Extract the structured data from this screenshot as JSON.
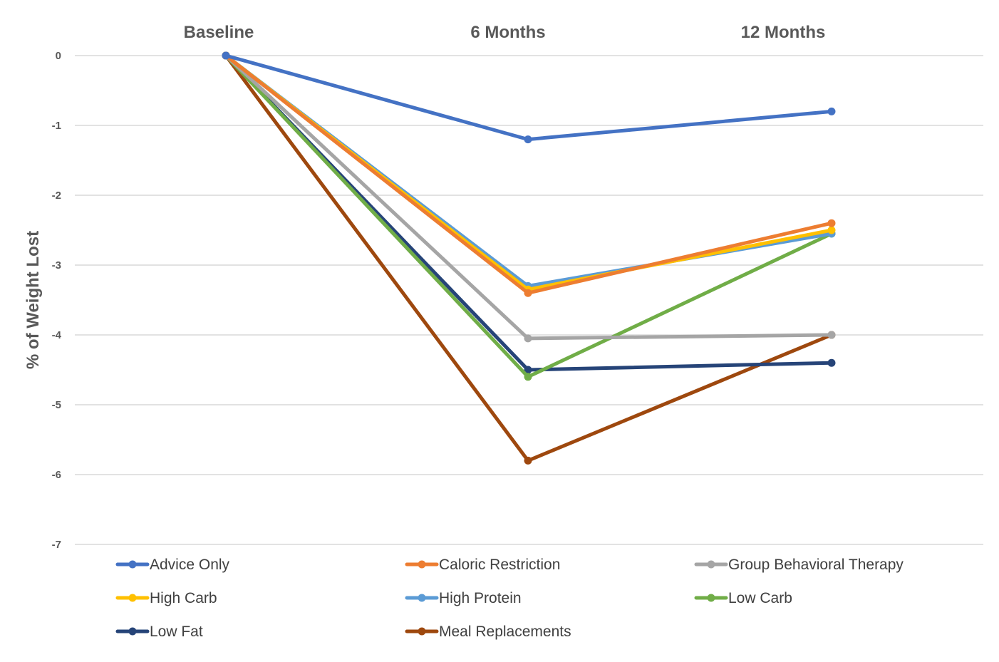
{
  "chart_data": {
    "type": "line",
    "title": "",
    "xlabel": "",
    "ylabel": "% of Weight Lost",
    "categories": [
      "Baseline",
      "6 Months",
      "12 Months"
    ],
    "ylim": [
      -7,
      0
    ],
    "yticks": [
      "0",
      "-1",
      "-2",
      "-3",
      "-4",
      "-5",
      "-6",
      "-7"
    ],
    "grid": "horizontal",
    "legend_position": "bottom",
    "series": [
      {
        "name": "Advice Only",
        "color": "#4472C4",
        "values": [
          0,
          -1.2,
          -0.8
        ]
      },
      {
        "name": "Caloric Restriction",
        "color": "#ED7D31",
        "values": [
          0,
          -3.4,
          -2.4
        ]
      },
      {
        "name": "Group Behavioral Therapy",
        "color": "#A5A5A5",
        "values": [
          0,
          -4.05,
          -4.0
        ]
      },
      {
        "name": "High Carb",
        "color": "#FFC000",
        "values": [
          0,
          -3.35,
          -2.5
        ]
      },
      {
        "name": "High Protein",
        "color": "#5B9BD5",
        "values": [
          0,
          -3.3,
          -2.55
        ]
      },
      {
        "name": "Low Carb",
        "color": "#70AD47",
        "values": [
          0,
          -4.6,
          -2.55
        ]
      },
      {
        "name": "Low Fat",
        "color": "#264478",
        "values": [
          0,
          -4.5,
          -4.4
        ]
      },
      {
        "name": "Meal Replacements",
        "color": "#9E480E",
        "values": [
          0,
          -5.8,
          -4.0
        ]
      }
    ]
  }
}
